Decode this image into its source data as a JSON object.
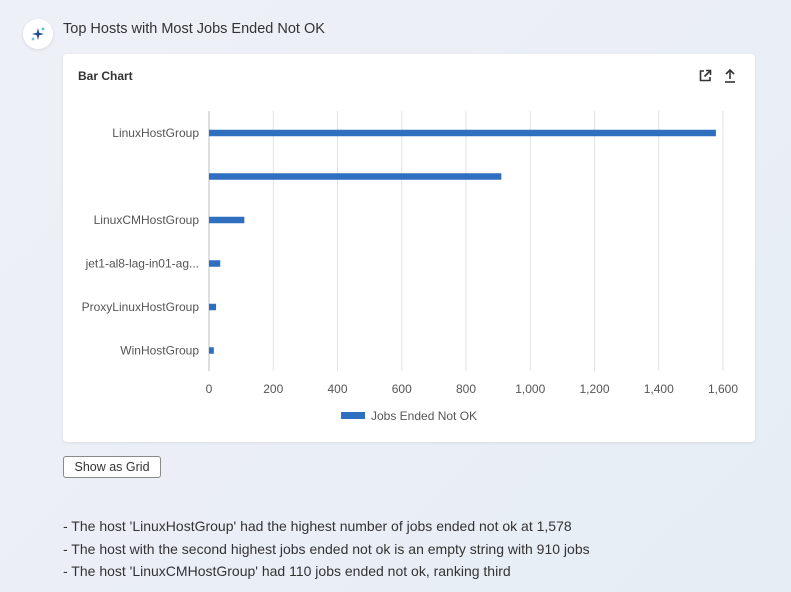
{
  "header": {
    "title": "Top Hosts with Most Jobs Ended Not OK"
  },
  "card": {
    "title": "Bar Chart",
    "icons": [
      "open-external-icon",
      "share-upload-icon"
    ]
  },
  "chart_data": {
    "type": "bar",
    "orientation": "horizontal",
    "categories": [
      "LinuxHostGroup",
      "",
      "LinuxCMHostGroup",
      "jet1-al8-lag-in01-ag...",
      "ProxyLinuxHostGroup",
      "WinHostGroup"
    ],
    "series": [
      {
        "name": "Jobs Ended Not OK",
        "values": [
          1578,
          910,
          110,
          35,
          22,
          15
        ]
      }
    ],
    "xlim": [
      0,
      1600
    ],
    "xticks": [
      0,
      200,
      400,
      600,
      800,
      1000,
      1200,
      1400,
      1600
    ],
    "xtick_labels": [
      "0",
      "200",
      "400",
      "600",
      "800",
      "1,000",
      "1,200",
      "1,400",
      "1,600"
    ],
    "grid": true,
    "legend_position": "bottom",
    "color": "#2f6fbf"
  },
  "buttons": {
    "show_grid": "Show as Grid"
  },
  "summary": [
    "- The host 'LinuxHostGroup' had the highest number of jobs ended not ok at 1,578",
    "- The host with the second highest jobs ended not ok is an empty string with 910 jobs",
    "- The host 'LinuxCMHostGroup' had 110 jobs ended not ok, ranking third"
  ]
}
